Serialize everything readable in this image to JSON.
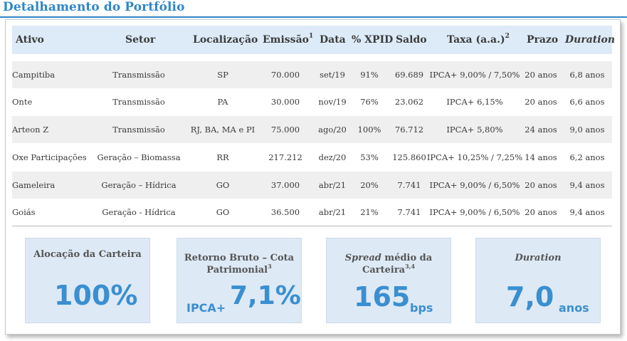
{
  "title": "Detalhamento do Portfólio",
  "table": {
    "headers": {
      "ativo": "Ativo",
      "setor": "Setor",
      "localizacao": "Localização",
      "emissao": "Emissão",
      "emissao_note": "1",
      "data": "Data",
      "xpid": "% XPID",
      "saldo": "Saldo",
      "taxa": "Taxa (a.a.)",
      "taxa_note": "2",
      "prazo": "Prazo",
      "duration": "Duration"
    },
    "rows": [
      {
        "ativo": "Campitiba",
        "setor": "Transmissão",
        "localizacao": "SP",
        "emissao": "70.000",
        "data": "set/19",
        "xpid": "91%",
        "saldo": "69.689",
        "taxa": "IPCA+ 9,00% / 7,50%",
        "prazo": "20 anos",
        "duration": "6,8 anos"
      },
      {
        "ativo": "Onte",
        "setor": "Transmissão",
        "localizacao": "PA",
        "emissao": "30.000",
        "data": "nov/19",
        "xpid": "76%",
        "saldo": "23.062",
        "taxa": "IPCA+ 6,15%",
        "prazo": "20 anos",
        "duration": "6,6 anos"
      },
      {
        "ativo": "Arteon Z",
        "setor": "Transmissão",
        "localizacao": "RJ, BA, MA e PI",
        "emissao": "75.000",
        "data": "ago/20",
        "xpid": "100%",
        "saldo": "76.712",
        "taxa": "IPCA+ 5,80%",
        "prazo": "24 anos",
        "duration": "9,0 anos"
      },
      {
        "ativo": "Oxe Participações",
        "setor": "Geração – Biomassa",
        "localizacao": "RR",
        "emissao": "217.212",
        "data": "dez/20",
        "xpid": "53%",
        "saldo": "125.860",
        "taxa": "IPCA+ 10,25% / 7,25%",
        "prazo": "14 anos",
        "duration": "6,2 anos"
      },
      {
        "ativo": "Gameleira",
        "setor": "Geração – Hídrica",
        "localizacao": "GO",
        "emissao": "37.000",
        "data": "abr/21",
        "xpid": "20%",
        "saldo": "7.741",
        "taxa": "IPCA+ 9,00% / 6,50%",
        "prazo": "20 anos",
        "duration": "9,4 anos"
      },
      {
        "ativo": "Goiás",
        "setor": "Geração - Hídrica",
        "localizacao": "GO",
        "emissao": "36.500",
        "data": "abr/21",
        "xpid": "21%",
        "saldo": "7.741",
        "taxa": "IPCA+ 9,00% / 6,50%",
        "prazo": "20 anos",
        "duration": "9,4 anos"
      }
    ]
  },
  "cards": {
    "alocacao": {
      "label": "Alocação da Carteira",
      "value": "100%"
    },
    "retorno": {
      "label_line1": "Retorno Bruto – Cota",
      "label_line2": "Patrimonial",
      "label_note": "3",
      "prefix": "IPCA+",
      "value": "7,1%"
    },
    "spread": {
      "label_italic": "Spread",
      "label_rest": " médio da",
      "label_line2": "Carteira",
      "label_note": "3,4",
      "value": "165",
      "unit": "bps"
    },
    "duration": {
      "label": "Duration",
      "value": "7,0",
      "unit": "anos"
    }
  },
  "colors": {
    "accent": "#2e86c8",
    "header_bg": "#dcebf7",
    "card_bg": "#dde9f5",
    "alt_row": "#efefef"
  }
}
